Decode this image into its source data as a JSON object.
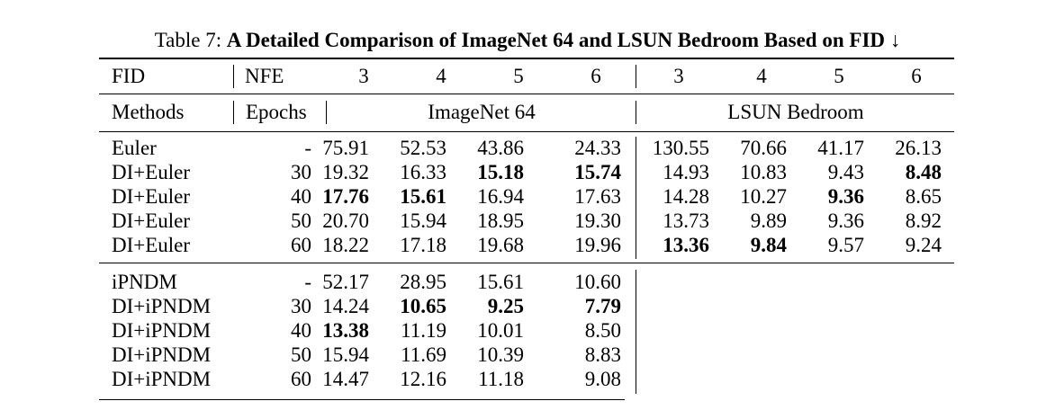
{
  "caption": {
    "label": "Table 7:",
    "title": "A Detailed Comparison of ImageNet 64 and LSUN Bedroom Based on FID ↓"
  },
  "header": {
    "fid": "FID",
    "nfe": "NFE",
    "imagenet_nfe": [
      "3",
      "4",
      "5",
      "6"
    ],
    "lsun_nfe": [
      "3",
      "4",
      "5",
      "6"
    ],
    "methods": "Methods",
    "epochs": "Epochs",
    "imagenet": "ImageNet 64",
    "lsun": "LSUN Bedroom"
  },
  "euler_block": [
    {
      "method": "Euler",
      "epochs": "-",
      "imagenet": [
        "75.91",
        "52.53",
        "43.86",
        "24.33"
      ],
      "lsun": [
        "130.55",
        "70.66",
        "41.17",
        "26.13"
      ]
    },
    {
      "method": "DI+Euler",
      "epochs": "30",
      "imagenet": [
        "19.32",
        "16.33",
        "15.18",
        "15.74"
      ],
      "lsun": [
        "14.93",
        "10.83",
        "9.43",
        "8.48"
      ]
    },
    {
      "method": "DI+Euler",
      "epochs": "40",
      "imagenet": [
        "17.76",
        "15.61",
        "16.94",
        "17.63"
      ],
      "lsun": [
        "14.28",
        "10.27",
        "9.36",
        "8.65"
      ]
    },
    {
      "method": "DI+Euler",
      "epochs": "50",
      "imagenet": [
        "20.70",
        "15.94",
        "18.95",
        "19.30"
      ],
      "lsun": [
        "13.73",
        "9.89",
        "9.36",
        "8.92"
      ]
    },
    {
      "method": "DI+Euler",
      "epochs": "60",
      "imagenet": [
        "18.22",
        "17.18",
        "19.68",
        "19.96"
      ],
      "lsun": [
        "13.36",
        "9.84",
        "9.57",
        "9.24"
      ]
    }
  ],
  "ipndm_block": [
    {
      "method": "iPNDM",
      "epochs": "-",
      "imagenet": [
        "52.17",
        "28.95",
        "15.61",
        "10.60"
      ]
    },
    {
      "method": "DI+iPNDM",
      "epochs": "30",
      "imagenet": [
        "14.24",
        "10.65",
        "9.25",
        "7.79"
      ]
    },
    {
      "method": "DI+iPNDM",
      "epochs": "40",
      "imagenet": [
        "13.38",
        "11.19",
        "10.01",
        "8.50"
      ]
    },
    {
      "method": "DI+iPNDM",
      "epochs": "50",
      "imagenet": [
        "15.94",
        "11.69",
        "10.39",
        "8.83"
      ]
    },
    {
      "method": "DI+iPNDM",
      "epochs": "60",
      "imagenet": [
        "14.47",
        "12.16",
        "11.18",
        "9.08"
      ]
    }
  ],
  "bold": {
    "euler_imagenet": [
      [
        1,
        2
      ],
      [
        1,
        3
      ],
      [
        2,
        0
      ],
      [
        2,
        1
      ]
    ],
    "euler_lsun": [
      [
        1,
        3
      ],
      [
        2,
        2
      ],
      [
        4,
        0
      ],
      [
        4,
        1
      ]
    ],
    "ipndm_imagenet": [
      [
        1,
        1
      ],
      [
        1,
        2
      ],
      [
        1,
        3
      ],
      [
        2,
        0
      ]
    ]
  }
}
